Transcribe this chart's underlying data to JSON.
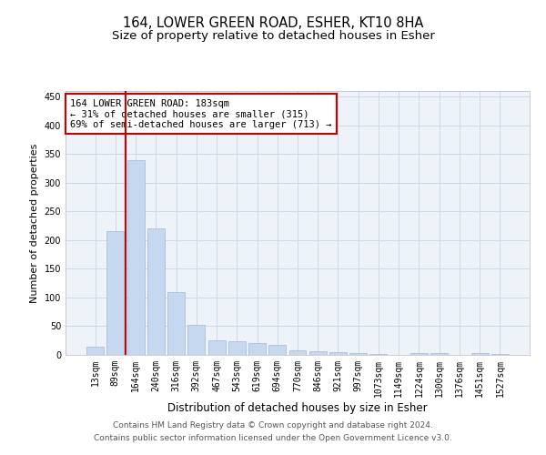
{
  "title": "164, LOWER GREEN ROAD, ESHER, KT10 8HA",
  "subtitle": "Size of property relative to detached houses in Esher",
  "xlabel": "Distribution of detached houses by size in Esher",
  "ylabel": "Number of detached properties",
  "categories": [
    "13sqm",
    "89sqm",
    "164sqm",
    "240sqm",
    "316sqm",
    "392sqm",
    "467sqm",
    "543sqm",
    "619sqm",
    "694sqm",
    "770sqm",
    "846sqm",
    "921sqm",
    "997sqm",
    "1073sqm",
    "1149sqm",
    "1224sqm",
    "1300sqm",
    "1376sqm",
    "1451sqm",
    "1527sqm"
  ],
  "values": [
    15,
    215,
    340,
    220,
    110,
    53,
    25,
    24,
    20,
    18,
    8,
    7,
    5,
    3,
    2,
    0,
    3,
    3,
    0,
    3,
    2
  ],
  "bar_color": "#c5d8f0",
  "bar_edge_color": "#a0b8d8",
  "red_line_index": 2,
  "red_line_color": "#cc0000",
  "annotation_text": "164 LOWER GREEN ROAD: 183sqm\n← 31% of detached houses are smaller (315)\n69% of semi-detached houses are larger (713) →",
  "annotation_box_color": "#ffffff",
  "annotation_box_edge": "#cc0000",
  "ylim": [
    0,
    460
  ],
  "yticks": [
    0,
    50,
    100,
    150,
    200,
    250,
    300,
    350,
    400,
    450
  ],
  "grid_color": "#d0d8e8",
  "background_color": "#eef2f9",
  "footer1": "Contains HM Land Registry data © Crown copyright and database right 2024.",
  "footer2": "Contains public sector information licensed under the Open Government Licence v3.0.",
  "title_fontsize": 10.5,
  "subtitle_fontsize": 9.5,
  "xlabel_fontsize": 8.5,
  "ylabel_fontsize": 8,
  "tick_fontsize": 7,
  "footer_fontsize": 6.5,
  "ann_fontsize": 7.5
}
